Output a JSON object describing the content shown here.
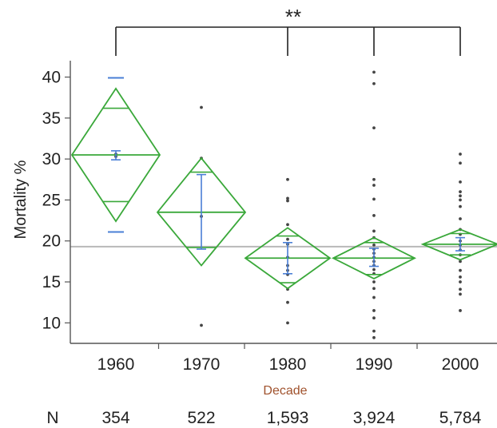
{
  "chart_data": {
    "type": "scatter",
    "subtype": "means-diamonds",
    "xlabel": "Decade",
    "ylabel": "Mortality %",
    "categories": [
      "1960",
      "1970",
      "1980",
      "1990",
      "2000"
    ],
    "ylim": [
      7.5,
      42
    ],
    "yticks": [
      10,
      15,
      20,
      25,
      30,
      35,
      40
    ],
    "grand_mean": 19.3,
    "n_label": "N",
    "n_values": [
      "354",
      "522",
      "1,593",
      "3,924",
      "5,784"
    ],
    "significance": "**",
    "bracket_groups": [
      "1960",
      "1980",
      "1990",
      "2000"
    ],
    "groups": [
      {
        "category": "1960",
        "mean": 30.5,
        "ci_low": 22.4,
        "ci_high": 38.6,
        "overlap_low": 24.8,
        "overlap_high": 36.2,
        "whisker_low": 21.1,
        "whisker_high": 39.9,
        "bar_low": 29.9,
        "bar_high": 31.0,
        "points": [
          30.3,
          30.6
        ]
      },
      {
        "category": "1970",
        "mean": 23.5,
        "ci_low": 17.0,
        "ci_high": 30.1,
        "overlap_low": 19.2,
        "overlap_high": 28.4,
        "whisker_low": 19.0,
        "whisker_high": 28.1,
        "bar_low": 19.0,
        "bar_high": 28.1,
        "points": [
          36.3,
          30.1,
          23.0,
          9.7
        ]
      },
      {
        "category": "1980",
        "mean": 17.9,
        "ci_low": 14.2,
        "ci_high": 21.6,
        "overlap_low": 14.9,
        "overlap_high": 20.6,
        "whisker_low": 16.0,
        "whisker_high": 19.8,
        "bar_low": 16.0,
        "bar_high": 19.8,
        "points": [
          27.5,
          25.2,
          24.9,
          22.0,
          20.2,
          19.6,
          18.0,
          17.0,
          16.4,
          15.9,
          14.1,
          12.5,
          10.0
        ]
      },
      {
        "category": "1990",
        "mean": 17.9,
        "ci_low": 15.4,
        "ci_high": 20.4,
        "overlap_low": 15.9,
        "overlap_high": 19.8,
        "whisker_low": 16.9,
        "whisker_high": 19.1,
        "bar_low": 16.9,
        "bar_high": 19.1,
        "points": [
          40.6,
          39.2,
          33.8,
          27.5,
          26.8,
          25.1,
          23.1,
          21.2,
          20.4,
          19.5,
          19.0,
          18.5,
          18.0,
          17.5,
          17.0,
          16.5,
          16.0,
          15.0,
          14.2,
          13.1,
          11.5,
          10.6,
          9.0,
          8.2
        ]
      },
      {
        "category": "2000",
        "mean": 19.6,
        "ci_low": 17.7,
        "ci_high": 21.4,
        "overlap_low": 18.3,
        "overlap_high": 20.9,
        "whisker_low": 18.8,
        "whisker_high": 20.4,
        "bar_low": 18.8,
        "bar_high": 20.4,
        "points": [
          30.6,
          29.5,
          27.2,
          26.0,
          25.5,
          25.0,
          24.2,
          22.7,
          21.4,
          20.8,
          20.0,
          19.5,
          18.9,
          18.3,
          17.5,
          16.4,
          15.6,
          15.0,
          14.1,
          13.5,
          11.5
        ]
      }
    ],
    "colors": {
      "diamond": "#3aa83a",
      "whisker": "#4a7fd6",
      "point": "#444444",
      "mean_line": "#b8b8b8",
      "axis": "#555555"
    }
  }
}
